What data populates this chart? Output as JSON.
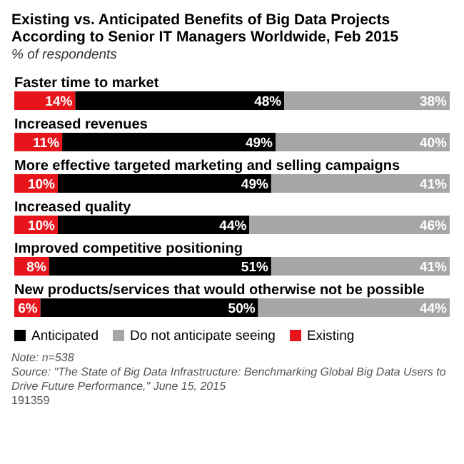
{
  "chart_data": {
    "type": "bar",
    "orientation": "horizontal",
    "stacked": true,
    "title": "Existing vs. Anticipated Benefits of Big Data Projects According to Senior IT Managers Worldwide, Feb 2015",
    "subtitle": "% of respondents",
    "categories": [
      "Faster time to market",
      "Increased revenues",
      "More effective targeted marketing and selling campaigns",
      "Increased quality",
      "Improved competitive positioning",
      "New products/services that would otherwise not be possible"
    ],
    "series": [
      {
        "name": "Existing",
        "color": "#e8141b",
        "values": [
          14,
          11,
          10,
          10,
          8,
          6
        ],
        "value_labels": [
          "14%",
          "11%",
          "10%",
          "10%",
          "8%",
          "6%"
        ]
      },
      {
        "name": "Anticipated",
        "color": "#000000",
        "values": [
          48,
          49,
          49,
          44,
          51,
          50
        ],
        "value_labels": [
          "48%",
          "49%",
          "49%",
          "44%",
          "51%",
          "50%"
        ]
      },
      {
        "name": "Do not anticipate seeing",
        "color": "#a6a6a6",
        "values": [
          38,
          40,
          41,
          46,
          41,
          44
        ],
        "value_labels": [
          "38%",
          "40%",
          "41%",
          "46%",
          "41%",
          "44%"
        ]
      }
    ],
    "legend": "bottom",
    "annotations": [
      "Note: n=538",
      "Source: \"The State of Big Data Infrastructure: Benchmarking Global Big Data Users to Drive Future Performance,\" June 15, 2015",
      "191359"
    ]
  }
}
